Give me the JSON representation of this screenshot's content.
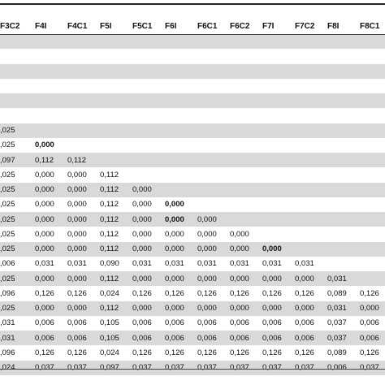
{
  "table": {
    "headers": [
      "F3C2",
      "F4I",
      "F4C1",
      "F5I",
      "F5C1",
      "F6I",
      "F6C1",
      "F6C2",
      "F7I",
      "F7C2",
      "F8I",
      "F8C1"
    ],
    "rows": [
      [],
      [],
      [],
      [],
      [],
      [],
      [
        ",025"
      ],
      [
        ",025",
        "0,000"
      ],
      [
        ",097",
        "0,112",
        "0,112"
      ],
      [
        ",025",
        "0,000",
        "0,000",
        "0,112"
      ],
      [
        ",025",
        "0,000",
        "0,000",
        "0,112",
        "0,000"
      ],
      [
        ",025",
        "0,000",
        "0,000",
        "0,112",
        "0,000",
        "0,000"
      ],
      [
        ",025",
        "0,000",
        "0,000",
        "0,112",
        "0,000",
        "0,000",
        "0,000"
      ],
      [
        ",025",
        "0,000",
        "0,000",
        "0,112",
        "0,000",
        "0,000",
        "0,000",
        "0,000"
      ],
      [
        ",025",
        "0,000",
        "0,000",
        "0,112",
        "0,000",
        "0,000",
        "0,000",
        "0,000",
        "0,000"
      ],
      [
        ",006",
        "0,031",
        "0,031",
        "0,090",
        "0,031",
        "0,031",
        "0,031",
        "0,031",
        "0,031",
        "0,031"
      ],
      [
        ",025",
        "0,000",
        "0,000",
        "0,112",
        "0,000",
        "0,000",
        "0,000",
        "0,000",
        "0,000",
        "0,000",
        "0,031"
      ],
      [
        ",096",
        "0,126",
        "0,126",
        "0,024",
        "0,126",
        "0,126",
        "0,126",
        "0,126",
        "0,126",
        "0,126",
        "0,089",
        "0,126"
      ],
      [
        ",025",
        "0,000",
        "0,000",
        "0,112",
        "0,000",
        "0,000",
        "0,000",
        "0,000",
        "0,000",
        "0,000",
        "0,031",
        "0,000"
      ],
      [
        ",031",
        "0,006",
        "0,006",
        "0,105",
        "0,006",
        "0,006",
        "0,006",
        "0,006",
        "0,006",
        "0,006",
        "0,037",
        "0,006"
      ],
      [
        ",031",
        "0,006",
        "0,006",
        "0,105",
        "0,006",
        "0,006",
        "0,006",
        "0,006",
        "0,006",
        "0,006",
        "0,037",
        "0,006"
      ],
      [
        ",096",
        "0,126",
        "0,126",
        "0,024",
        "0,126",
        "0,126",
        "0,126",
        "0,126",
        "0,126",
        "0,126",
        "0,089",
        "0,126"
      ],
      [
        ",024",
        "0,037",
        "0,037",
        "0,097",
        "0,037",
        "0,037",
        "0,037",
        "0,037",
        "0,037",
        "0,037",
        "0,006",
        "0,037"
      ]
    ],
    "bold_cells": [
      [
        7,
        1
      ],
      [
        11,
        5
      ],
      [
        12,
        5
      ],
      [
        14,
        8
      ]
    ]
  }
}
